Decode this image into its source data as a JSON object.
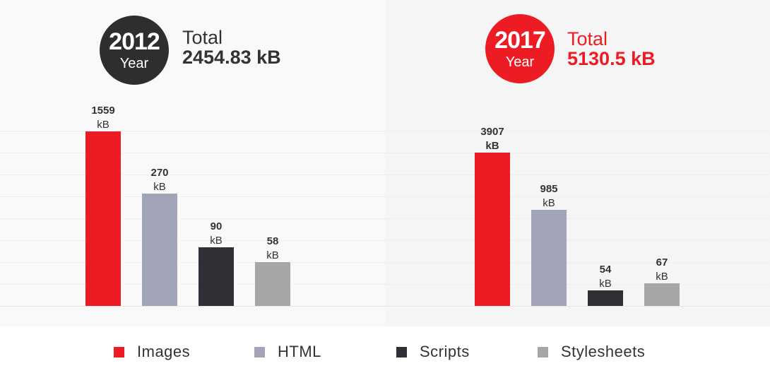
{
  "chart_data": [
    {
      "type": "bar",
      "badge": {
        "year": "2012",
        "sub": "Year"
      },
      "total_label": "Total",
      "total_value": "2454.83 kB",
      "categories": [
        "Images",
        "HTML",
        "Scripts",
        "Stylesheets"
      ],
      "values": [
        1559,
        270,
        90,
        58
      ],
      "value_labels": [
        "1559",
        "270",
        "90",
        "58"
      ],
      "unit": "kB",
      "scale": "nonlinear (bar heights not proportional to values)"
    },
    {
      "type": "bar",
      "badge": {
        "year": "2017",
        "sub": "Year"
      },
      "total_label": "Total",
      "total_value": "5130.5 kB",
      "categories": [
        "Images",
        "HTML",
        "Scripts",
        "Stylesheets"
      ],
      "values": [
        3907,
        985,
        54,
        67
      ],
      "value_labels": [
        "3907",
        "985",
        "54",
        "67"
      ],
      "unit": "kB",
      "scale": "nonlinear (bar heights not proportional to values)"
    }
  ],
  "legend": [
    {
      "label": "Images",
      "color": "#ed1c24"
    },
    {
      "label": "HTML",
      "color": "#a2a4b7"
    },
    {
      "label": "Scripts",
      "color": "#2f2f35"
    },
    {
      "label": "Stylesheets",
      "color": "#a6a6a6"
    }
  ],
  "colors": {
    "dark": "#2e2e2e",
    "red": "#ed1c24"
  }
}
